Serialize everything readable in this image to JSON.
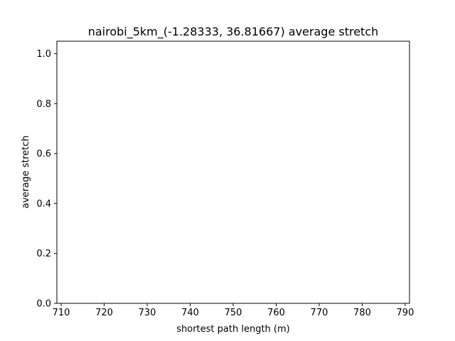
{
  "chart_data": {
    "type": "line",
    "title": "nairobi_5km_(-1.28333, 36.81667) average stretch",
    "xlabel": "shortest path length (m)",
    "ylabel": "average stretch",
    "xlim": [
      709,
      791
    ],
    "ylim": [
      0,
      1.05
    ],
    "xticks": [
      710,
      720,
      730,
      740,
      750,
      760,
      770,
      780,
      790
    ],
    "yticks": [
      0.0,
      0.2,
      0.4,
      0.6,
      0.8,
      1.0
    ],
    "ytick_labels": [
      "0.0",
      "0.2",
      "0.4",
      "0.6",
      "0.8",
      "1.0"
    ],
    "series": [],
    "grid": false,
    "colors": {
      "axis": "#000000",
      "background": "#ffffff"
    }
  }
}
